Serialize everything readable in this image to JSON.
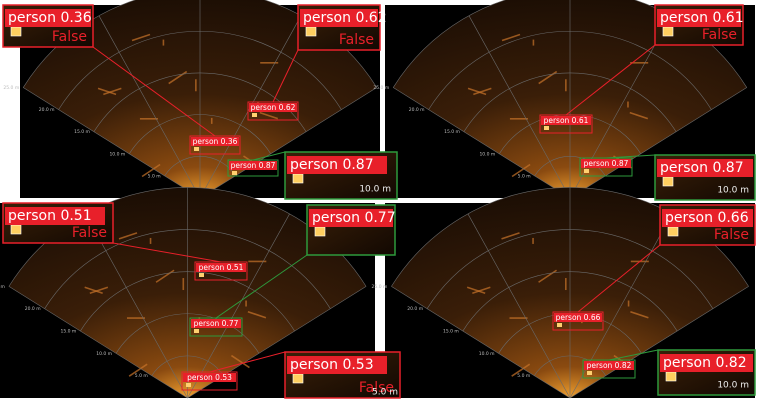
{
  "panels": [
    {
      "ranges": [
        "5.0 m",
        "10.0 m",
        "15.0 m",
        "20.0 m",
        "25.0 m"
      ],
      "boxes": [
        "person 0.62",
        "person 0.36",
        "person 0.87"
      ],
      "insets": [
        {
          "label": "person 0.36",
          "tag": "False"
        },
        {
          "label": "person 0.62",
          "tag": "False"
        },
        {
          "label": "person 0.87",
          "tag": "10.0 m"
        }
      ]
    },
    {
      "ranges": [
        "5.0 m",
        "10.0 m",
        "15.0 m",
        "20.0 m",
        "25.0 m"
      ],
      "boxes": [
        "person 0.61",
        "person 0.87"
      ],
      "insets": [
        {
          "label": "person 0.61",
          "tag": "False"
        },
        {
          "label": "person 0.87",
          "tag": "10.0 m"
        }
      ]
    },
    {
      "ranges": [
        "5.0 m",
        "10.0 m",
        "15.0 m",
        "20.0 m",
        "25.0 m"
      ],
      "boxes": [
        "person 0.51",
        "person 0.77",
        "person 0.53"
      ],
      "insets": [
        {
          "label": "person 0.51",
          "tag": "False"
        },
        {
          "label": "person 0.77"
        },
        {
          "label": "person 0.53",
          "tag": "False",
          "scale": "5.0 m"
        }
      ]
    },
    {
      "ranges": [
        "5.0 m",
        "10.0 m",
        "15.0 m",
        "20.0 m",
        "25.0 m"
      ],
      "boxes": [
        "person 0.66",
        "person 0.82"
      ],
      "insets": [
        {
          "label": "person 0.66",
          "tag": "False"
        },
        {
          "label": "person 0.82",
          "tag": "10.0 m"
        }
      ]
    }
  ]
}
